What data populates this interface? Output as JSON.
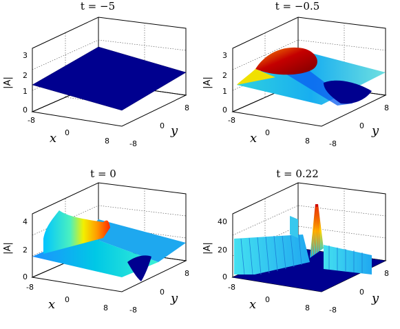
{
  "chart_data": [
    {
      "type": "surface",
      "title": "t = −5",
      "xlabel": "x",
      "ylabel": "y",
      "zlabel": "|A|",
      "x_ticks": [
        "-8",
        "0",
        "8"
      ],
      "y_ticks": [
        "-8",
        "0",
        "8"
      ],
      "z_ticks": [
        "0",
        "1",
        "2",
        "3"
      ],
      "zlim": [
        0,
        3
      ],
      "grid": true,
      "surface": "flat plane at |A| ≈ 1.4, dark blue"
    },
    {
      "type": "surface",
      "title": "t = −0.5",
      "xlabel": "x",
      "ylabel": "y",
      "zlabel": "|A|",
      "x_ticks": [
        "-8",
        "0",
        "8"
      ],
      "y_ticks": [
        "-8",
        "0",
        "8"
      ],
      "z_ticks": [
        "0",
        "1",
        "2",
        "3"
      ],
      "zlim": [
        0,
        3
      ],
      "grid": true,
      "surface": "background ≈ 1.4 with a peak near 3 and a dip to ≈ 0"
    },
    {
      "type": "surface",
      "title": "t = 0",
      "xlabel": "x",
      "ylabel": "y",
      "zlabel": "|A|",
      "x_ticks": [
        "-8",
        "0",
        "8"
      ],
      "y_ticks": [
        "-8",
        "0",
        "8"
      ],
      "z_ticks": [
        "0",
        "2",
        "4"
      ],
      "zlim": [
        0,
        4
      ],
      "grid": true,
      "surface": "ridge rising to ≈ 3.7, peak ≈ 3.3, trough ≈ 0"
    },
    {
      "type": "surface",
      "title": "t = 0.22",
      "xlabel": "x",
      "ylabel": "y",
      "zlabel": "|A|",
      "x_ticks": [
        "-8",
        "0",
        "8"
      ],
      "y_ticks": [
        "-8",
        "0",
        "8"
      ],
      "z_ticks": [
        "0",
        "20",
        "40"
      ],
      "zlim": [
        0,
        40
      ],
      "grid": true,
      "surface": "walls ≈ 20–25 with a sharp spike ≈ 48"
    }
  ]
}
